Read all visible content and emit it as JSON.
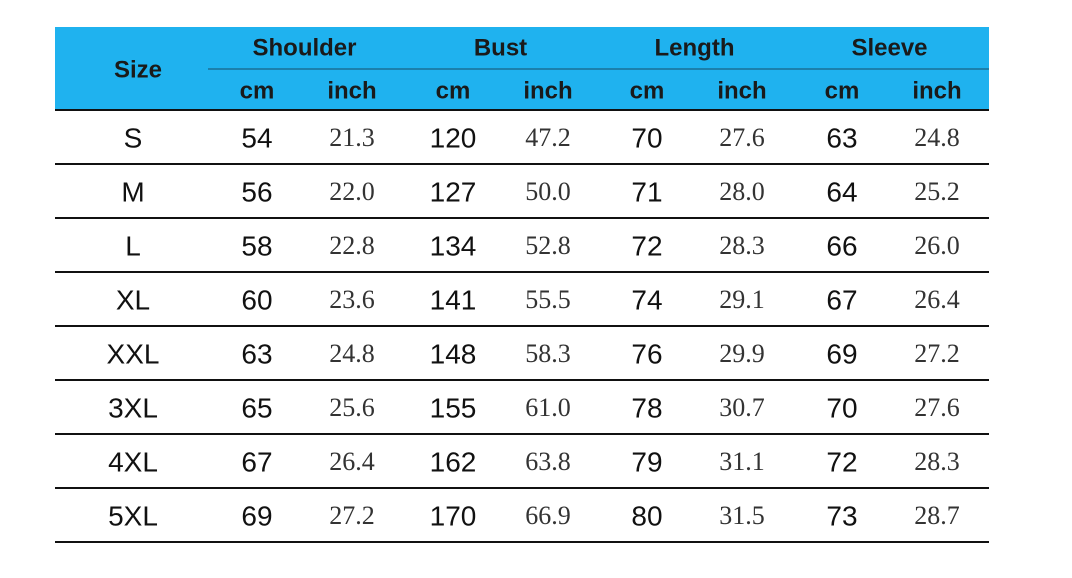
{
  "table": {
    "header": {
      "size": "Size",
      "groups": [
        "Shoulder",
        "Bust",
        "Length",
        "Sleeve"
      ],
      "units": [
        "cm",
        "inch",
        "cm",
        "inch",
        "cm",
        "inch",
        "cm",
        "inch"
      ]
    },
    "rows": [
      [
        "S",
        "54",
        "21.3",
        "120",
        "47.2",
        "70",
        "27.6",
        "63",
        "24.8"
      ],
      [
        "M",
        "56",
        "22.0",
        "127",
        "50.0",
        "71",
        "28.0",
        "64",
        "25.2"
      ],
      [
        "L",
        "58",
        "22.8",
        "134",
        "52.8",
        "72",
        "28.3",
        "66",
        "26.0"
      ],
      [
        "XL",
        "60",
        "23.6",
        "141",
        "55.5",
        "74",
        "29.1",
        "67",
        "26.4"
      ],
      [
        "XXL",
        "63",
        "24.8",
        "148",
        "58.3",
        "76",
        "29.9",
        "69",
        "27.2"
      ],
      [
        "3XL",
        "65",
        "25.6",
        "155",
        "61.0",
        "78",
        "30.7",
        "70",
        "27.6"
      ],
      [
        "4XL",
        "67",
        "26.4",
        "162",
        "63.8",
        "79",
        "31.1",
        "72",
        "28.3"
      ],
      [
        "5XL",
        "69",
        "27.2",
        "170",
        "66.9",
        "80",
        "31.5",
        "73",
        "28.7"
      ]
    ]
  }
}
